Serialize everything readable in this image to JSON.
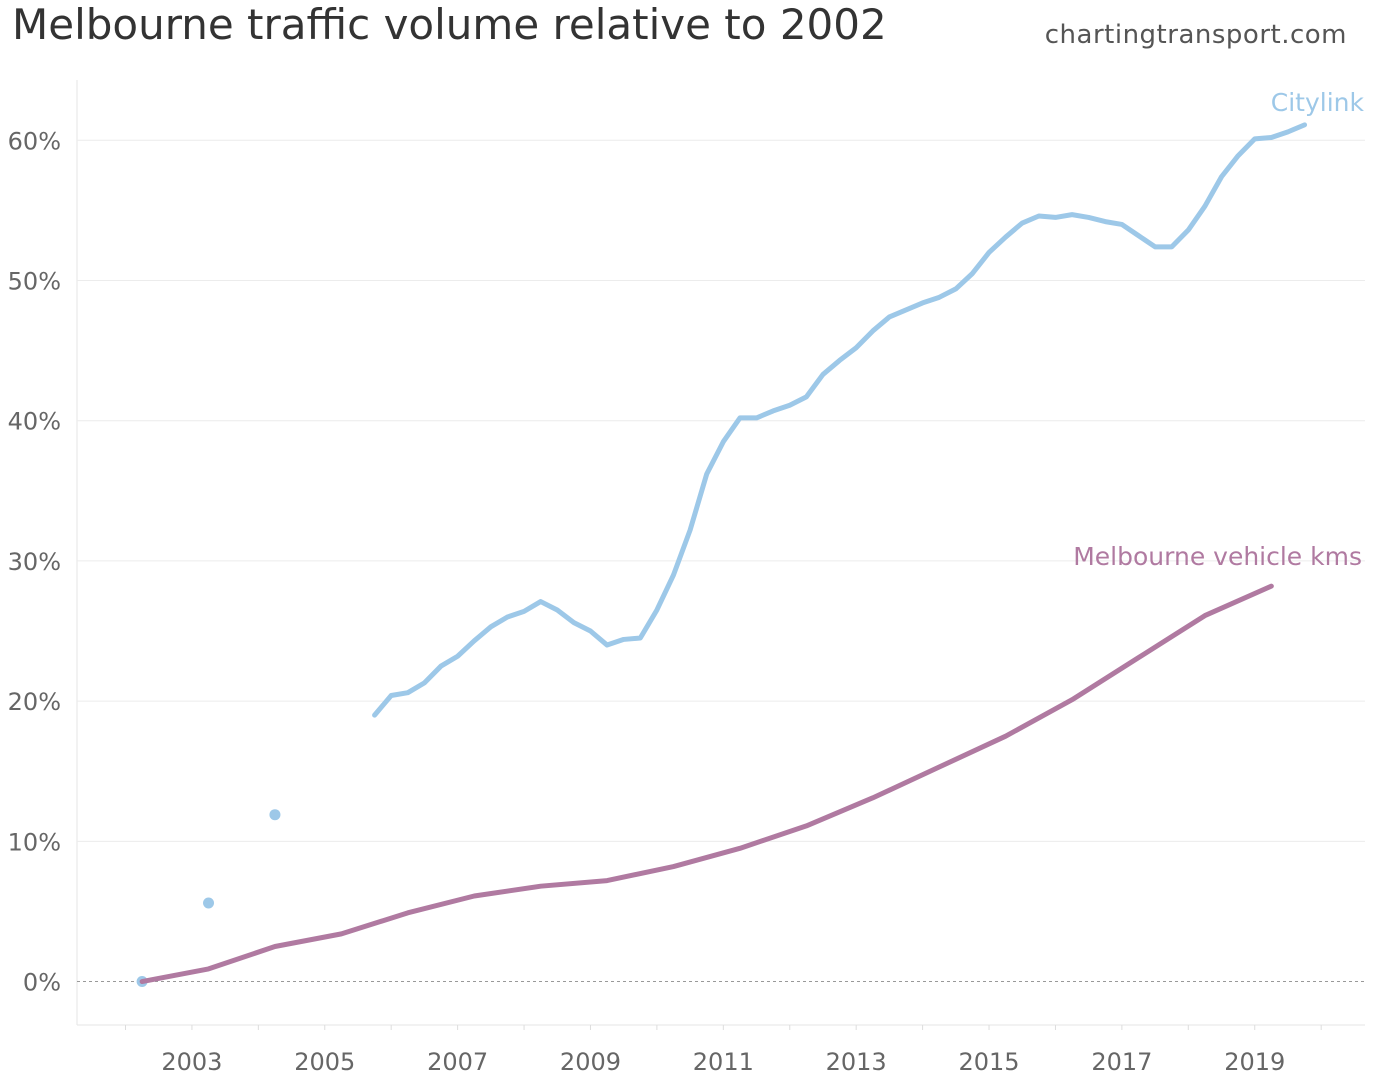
{
  "chart_data": {
    "type": "line",
    "title": "Melbourne traffic volume relative to 2002",
    "source": "chartingtransport.com",
    "xlabel": "",
    "ylabel": "",
    "xlim": [
      2001.27,
      2020.66
    ],
    "ylim": [
      -3.1,
      64.3
    ],
    "x_ticks": [
      2003,
      2005,
      2007,
      2009,
      2011,
      2013,
      2015,
      2017,
      2019
    ],
    "y_ticks": [
      0,
      10,
      20,
      30,
      40,
      50,
      60
    ],
    "y_tick_labels": [
      "0%",
      "10%",
      "20%",
      "30%",
      "40%",
      "50%",
      "60%"
    ],
    "grid": "horizontal",
    "zero_line": "dashed",
    "series": [
      {
        "name": "Citylink",
        "color": "#9dc8e8",
        "isolated_points": {
          "x": [
            2002.25,
            2003.25,
            2004.25
          ],
          "y": [
            0,
            5.6,
            11.9
          ]
        },
        "x_start": 2005.75,
        "x_step": 0.25,
        "y": [
          19.0,
          20.4,
          20.6,
          21.3,
          22.5,
          23.2,
          24.3,
          25.3,
          26.0,
          26.4,
          27.1,
          26.5,
          25.6,
          25.0,
          24.0,
          24.4,
          24.5,
          26.5,
          29.0,
          32.2,
          36.2,
          38.5,
          40.2,
          40.2,
          40.7,
          41.1,
          41.7,
          43.3,
          44.3,
          45.2,
          46.4,
          47.4,
          47.9,
          48.4,
          48.8,
          49.4,
          50.5,
          52.0,
          53.1,
          54.1,
          54.6,
          54.5,
          54.7,
          54.5,
          54.2,
          54.0,
          53.2,
          52.4,
          52.4,
          53.6,
          55.3,
          57.4,
          58.9,
          60.1,
          60.2,
          60.6,
          61.1
        ]
      },
      {
        "name": "Melbourne vehicle kms",
        "color": "#b07aa1",
        "x_start": 2002.25,
        "x_step": 1,
        "y": [
          0,
          0.9,
          2.5,
          3.4,
          4.9,
          6.1,
          6.8,
          7.2,
          8.2,
          9.5,
          11.1,
          13.1,
          15.3,
          17.5,
          20.1,
          23.1,
          26.1,
          28.2
        ]
      }
    ]
  }
}
